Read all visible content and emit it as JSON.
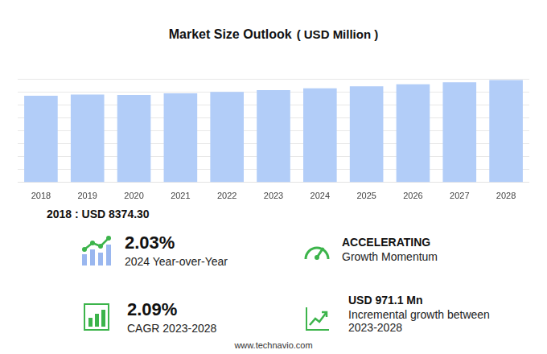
{
  "chart_data": {
    "type": "bar",
    "title": "Market Size Outlook",
    "subtitle": "( USD Million )",
    "categories": [
      "2018",
      "2019",
      "2020",
      "2021",
      "2022",
      "2023",
      "2024",
      "2025",
      "2026",
      "2027",
      "2028"
    ],
    "values": [
      8374.3,
      8480,
      8440,
      8600,
      8740,
      8909,
      9090,
      9280,
      9470,
      9670,
      9880
    ],
    "color": "#b2cdf8",
    "ylim": [
      0,
      10000
    ],
    "yticks": [
      0,
      1250,
      2500,
      3750,
      5000,
      6250,
      7500,
      8750,
      10000
    ],
    "grid": true,
    "tick_labels": "x"
  },
  "base_year": "2018 : USD  8374.30",
  "stats": [
    {
      "value": "2.03%",
      "label": "2024 Year-over-Year"
    },
    {
      "value": "ACCELERATING",
      "label": "Growth Momentum"
    },
    {
      "value": "2.09%",
      "label": "CAGR 2023-2028"
    },
    {
      "value": "USD 971.1 Mn",
      "label": "Incremental growth between 2023-2028"
    }
  ],
  "footer": "www.technavio.com"
}
